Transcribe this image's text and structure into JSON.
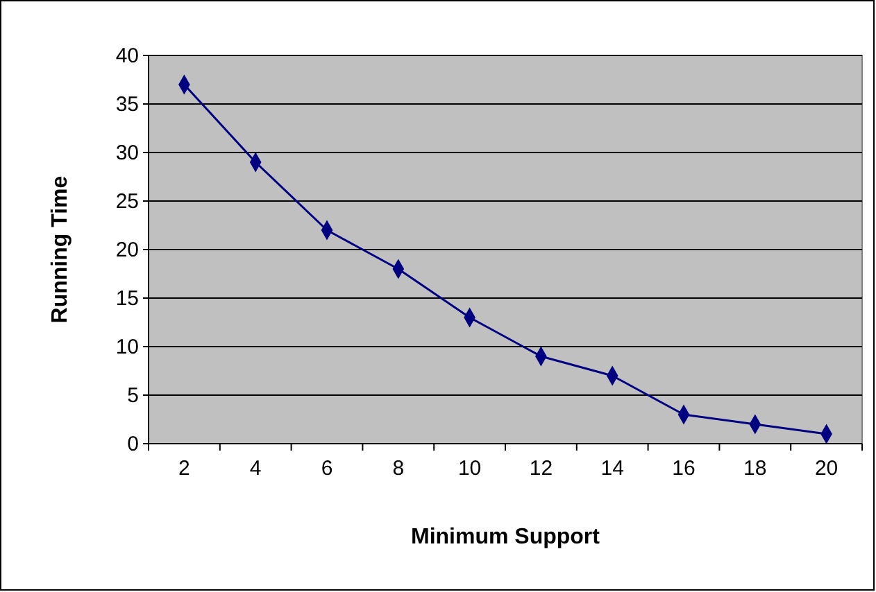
{
  "chart_data": {
    "type": "line",
    "xlabel": "Minimum Support",
    "ylabel": "Running Time",
    "categories": [
      "2",
      "4",
      "6",
      "8",
      "10",
      "12",
      "14",
      "16",
      "18",
      "20"
    ],
    "series": [
      {
        "color": "#000080",
        "values": [
          37,
          29,
          22,
          18,
          13,
          9,
          7,
          3,
          2,
          1
        ]
      }
    ],
    "ylim": [
      0,
      40
    ],
    "yticks": [
      0,
      5,
      10,
      15,
      20,
      25,
      30,
      35,
      40
    ],
    "grid": "y",
    "marker": "diamond",
    "line_style": "solid",
    "legend": false
  }
}
